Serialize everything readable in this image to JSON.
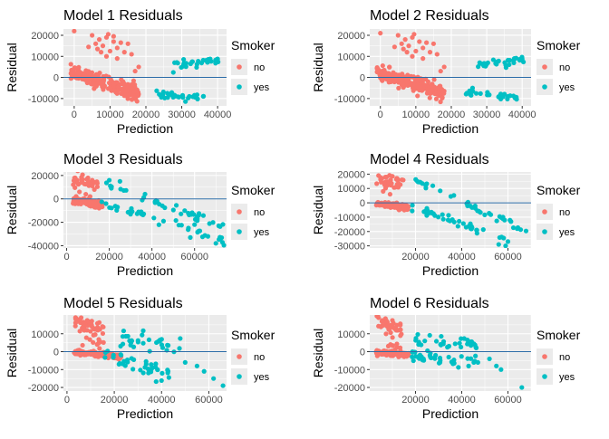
{
  "colors": {
    "no": "#F8766D",
    "yes": "#00BFC4",
    "panel": "#EBEBEB",
    "grid": "#FFFFFF",
    "hline": "#2C6CA8"
  },
  "legend": {
    "title": "Smoker",
    "items": [
      "no",
      "yes"
    ]
  },
  "chart_data": [
    {
      "type": "scatter",
      "title": "Model 1 Residuals",
      "xlabel": "Prediction",
      "ylabel": "Residual",
      "xlim": [
        -3000,
        42500
      ],
      "ylim": [
        -13500,
        23000
      ],
      "xticks": [
        0,
        10000,
        20000,
        30000,
        40000
      ],
      "xticklabels": [
        "0",
        "10000",
        "20000",
        "30000",
        "40000"
      ],
      "yticks": [
        -10000,
        0,
        10000,
        20000
      ],
      "yticklabels": [
        "-10000",
        "0",
        "10000",
        "20000"
      ],
      "hline": 0,
      "series": [
        {
          "name": "no",
          "clusters": [
            {
              "x0": -1000,
              "x1": 18000,
              "yc0": 2500,
              "yc1": -7500,
              "ys": 1800,
              "n": 220
            }
          ],
          "points": [
            [
              0,
              22000
            ],
            [
              5000,
              20000
            ],
            [
              7000,
              18000
            ],
            [
              9000,
              19000
            ],
            [
              11000,
              17000
            ],
            [
              13000,
              16500
            ],
            [
              6000,
              16000
            ],
            [
              8000,
              15000
            ],
            [
              12000,
              14000
            ],
            [
              14000,
              12000
            ],
            [
              10000,
              12500
            ],
            [
              9500,
              20500
            ],
            [
              15000,
              16000
            ],
            [
              7500,
              12000
            ],
            [
              16000,
              11000
            ],
            [
              4000,
              14500
            ],
            [
              6500,
              13500
            ],
            [
              18000,
              5000
            ],
            [
              17000,
              3000
            ],
            [
              12000,
              9000
            ],
            [
              9000,
              10000
            ],
            [
              11000,
              19500
            ]
          ]
        },
        {
          "name": "yes",
          "clusters": [
            {
              "x0": 27500,
              "x1": 41000,
              "yc0": 5500,
              "yc1": 8500,
              "ys": 900,
              "n": 28
            },
            {
              "x0": 23000,
              "x1": 38500,
              "yc0": -8500,
              "yc1": -10200,
              "ys": 800,
              "n": 28
            }
          ],
          "points": [
            [
              28000,
              7000
            ],
            [
              33000,
              7500
            ],
            [
              36000,
              8200
            ],
            [
              40000,
              8800
            ],
            [
              26000,
              -7500
            ],
            [
              36000,
              -9000
            ]
          ]
        }
      ]
    },
    {
      "type": "scatter",
      "title": "Model 2 Residuals",
      "xlabel": "Prediction",
      "ylabel": "Residual",
      "xlim": [
        -3000,
        42500
      ],
      "ylim": [
        -13500,
        23000
      ],
      "xticks": [
        0,
        10000,
        20000,
        30000,
        40000
      ],
      "xticklabels": [
        "0",
        "10000",
        "20000",
        "30000",
        "40000"
      ],
      "yticks": [
        -10000,
        0,
        10000,
        20000
      ],
      "yticklabels": [
        "-10000",
        "0",
        "10000",
        "20000"
      ],
      "hline": 0,
      "series": [
        {
          "name": "no",
          "clusters": [
            {
              "x0": -1000,
              "x1": 18000,
              "yc0": 2500,
              "yc1": -7500,
              "ys": 1800,
              "n": 220
            }
          ],
          "points": [
            [
              0,
              21000
            ],
            [
              5000,
              20000
            ],
            [
              7000,
              18000
            ],
            [
              9000,
              19000
            ],
            [
              11000,
              17000
            ],
            [
              13000,
              16500
            ],
            [
              6000,
              16000
            ],
            [
              8000,
              15000
            ],
            [
              12000,
              14000
            ],
            [
              14000,
              12000
            ],
            [
              10000,
              12500
            ],
            [
              9500,
              20500
            ],
            [
              15000,
              16000
            ],
            [
              7500,
              12000
            ],
            [
              16000,
              11000
            ],
            [
              4000,
              14500
            ],
            [
              6500,
              13500
            ],
            [
              18000,
              5000
            ],
            [
              17000,
              3000
            ],
            [
              12000,
              9000
            ],
            [
              9000,
              10000
            ]
          ]
        },
        {
          "name": "yes",
          "clusters": [
            {
              "x0": 27500,
              "x1": 41000,
              "yc0": 5500,
              "yc1": 8500,
              "ys": 900,
              "n": 28
            },
            {
              "x0": 23500,
              "x1": 38500,
              "yc0": -7500,
              "yc1": -9500,
              "ys": 900,
              "n": 28
            }
          ],
          "points": [
            [
              28000,
              7000
            ],
            [
              33000,
              7500
            ],
            [
              36000,
              8200
            ],
            [
              40000,
              8800
            ],
            [
              26000,
              -5000
            ],
            [
              36000,
              -9000
            ]
          ]
        }
      ]
    },
    {
      "type": "scatter",
      "title": "Model 3 Residuals",
      "xlabel": "Prediction",
      "ylabel": "Residual",
      "xlim": [
        -1500,
        75000
      ],
      "ylim": [
        -42000,
        23000
      ],
      "xticks": [
        0,
        20000,
        40000,
        60000
      ],
      "xticklabels": [
        "0",
        "20000",
        "40000",
        "60000"
      ],
      "yticks": [
        -40000,
        -20000,
        0,
        20000
      ],
      "yticklabels": [
        "-40000",
        "-20000",
        "0",
        "20000"
      ],
      "hline": 0,
      "series": [
        {
          "name": "no",
          "clusters": [
            {
              "x0": 3000,
              "x1": 17000,
              "yc0": -1500,
              "yc1": -5000,
              "ys": 1300,
              "n": 150
            },
            {
              "x0": 3000,
              "x1": 15000,
              "yc0": 15000,
              "yc1": 12000,
              "ys": 3000,
              "n": 35
            }
          ],
          "points": [
            [
              4000,
              18000
            ],
            [
              7000,
              17500
            ],
            [
              10000,
              18000
            ],
            [
              12000,
              16000
            ],
            [
              6000,
              6000
            ],
            [
              9000,
              4000
            ],
            [
              13000,
              8000
            ],
            [
              11000,
              2000
            ]
          ]
        },
        {
          "name": "yes",
          "clusters": [
            {
              "x0": 16000,
              "x1": 74000,
              "yc0": 15000,
              "yc1": -24000,
              "ys": 1500,
              "n": 38
            },
            {
              "x0": 16000,
              "x1": 74000,
              "yc0": -3000,
              "yc1": -36000,
              "ys": 1800,
              "n": 40
            }
          ],
          "points": [
            [
              20000,
              16000
            ],
            [
              25000,
              15000
            ],
            [
              58000,
              -33000
            ],
            [
              70000,
              -38000
            ],
            [
              60000,
              -22000
            ]
          ]
        }
      ]
    },
    {
      "type": "scatter",
      "title": "Model 4 Residuals",
      "xlabel": "Prediction",
      "ylabel": "Residual",
      "xlim": [
        200,
        70000
      ],
      "ylim": [
        -31500,
        21500
      ],
      "xticks": [
        20000,
        40000,
        60000
      ],
      "xticklabels": [
        "20000",
        "40000",
        "60000"
      ],
      "yticks": [
        -30000,
        -20000,
        -10000,
        0,
        10000,
        20000
      ],
      "yticklabels": [
        "-30000",
        "-20000",
        "-10000",
        "0",
        "10000",
        "20000"
      ],
      "hline": 0,
      "series": [
        {
          "name": "no",
          "clusters": [
            {
              "x0": 3000,
              "x1": 17000,
              "yc0": -800,
              "yc1": -3000,
              "ys": 900,
              "n": 150
            },
            {
              "x0": 3000,
              "x1": 15000,
              "yc0": 16000,
              "yc1": 13000,
              "ys": 2500,
              "n": 35
            }
          ],
          "points": [
            [
              4000,
              19000
            ],
            [
              7000,
              18000
            ],
            [
              10000,
              18500
            ],
            [
              12000,
              17000
            ],
            [
              6000,
              8000
            ],
            [
              9000,
              6000
            ]
          ]
        },
        {
          "name": "yes",
          "clusters": [
            {
              "x0": 20000,
              "x1": 68000,
              "yc0": 15000,
              "yc1": -20000,
              "ys": 1500,
              "n": 38
            },
            {
              "x0": 17000,
              "x1": 62000,
              "yc0": -2000,
              "yc1": -28000,
              "ys": 1500,
              "n": 38
            }
          ],
          "points": [
            [
              56000,
              -29000
            ],
            [
              59000,
              -30000
            ],
            [
              60000,
              -27000
            ],
            [
              64000,
              -18000
            ]
          ]
        }
      ]
    },
    {
      "type": "scatter",
      "title": "Model 5 Residuals",
      "xlabel": "Prediction",
      "ylabel": "Residual",
      "xlim": [
        -1500,
        67500
      ],
      "ylim": [
        -22000,
        20500
      ],
      "xticks": [
        0,
        20000,
        40000,
        60000
      ],
      "xticklabels": [
        "0",
        "20000",
        "40000",
        "60000"
      ],
      "yticks": [
        -20000,
        -10000,
        0,
        10000
      ],
      "yticklabels": [
        "-20000",
        "-10000",
        "0",
        "10000"
      ],
      "hline": 0,
      "series": [
        {
          "name": "no",
          "clusters": [
            {
              "x0": 3000,
              "x1": 23000,
              "yc0": -300,
              "yc1": -2800,
              "ys": 700,
              "n": 150
            },
            {
              "x0": 3000,
              "x1": 16000,
              "yc0": 16500,
              "yc1": 11000,
              "ys": 2000,
              "n": 38
            },
            {
              "x0": 6000,
              "x1": 16000,
              "yc0": 5000,
              "yc1": 3000,
              "ys": 2500,
              "n": 10
            }
          ],
          "points": [
            [
              4000,
              18500
            ],
            [
              6000,
              19000
            ],
            [
              9000,
              17000
            ],
            [
              13000,
              12000
            ]
          ]
        },
        {
          "name": "yes",
          "clusters": [
            {
              "x0": 22000,
              "x1": 48000,
              "yc0": 9000,
              "yc1": 2000,
              "ys": 2500,
              "n": 32
            },
            {
              "x0": 16000,
              "x1": 44000,
              "yc0": -3000,
              "yc1": -13000,
              "ys": 2500,
              "n": 38
            }
          ],
          "points": [
            [
              55000,
              -8000
            ],
            [
              58000,
              -11000
            ],
            [
              62000,
              -15000
            ],
            [
              66000,
              -19000
            ],
            [
              50000,
              -6000
            ],
            [
              22000,
              -7000
            ]
          ]
        }
      ]
    },
    {
      "type": "scatter",
      "title": "Model 6 Residuals",
      "xlabel": "Prediction",
      "ylabel": "Residual",
      "xlim": [
        200,
        70000
      ],
      "ylim": [
        -22000,
        20500
      ],
      "xticks": [
        20000,
        40000,
        60000
      ],
      "xticklabels": [
        "20000",
        "40000",
        "60000"
      ],
      "yticks": [
        -20000,
        -10000,
        0,
        10000
      ],
      "yticklabels": [
        "-20000",
        "-10000",
        "0",
        "10000"
      ],
      "hline": 0,
      "series": [
        {
          "name": "no",
          "clusters": [
            {
              "x0": 3000,
              "x1": 17000,
              "yc0": -300,
              "yc1": -1800,
              "ys": 600,
              "n": 150
            },
            {
              "x0": 3000,
              "x1": 14000,
              "yc0": 17000,
              "yc1": 12000,
              "ys": 2000,
              "n": 35
            },
            {
              "x0": 5000,
              "x1": 14000,
              "yc0": 6000,
              "yc1": 3000,
              "ys": 2500,
              "n": 10
            }
          ],
          "points": [
            [
              4000,
              19000
            ],
            [
              7000,
              18500
            ],
            [
              10000,
              17500
            ]
          ]
        },
        {
          "name": "yes",
          "clusters": [
            {
              "x0": 20000,
              "x1": 48000,
              "yc0": 7000,
              "yc1": 2000,
              "ys": 2200,
              "n": 30
            },
            {
              "x0": 18000,
              "x1": 46000,
              "yc0": -2000,
              "yc1": -6000,
              "ys": 1800,
              "n": 40
            }
          ],
          "points": [
            [
              52000,
              -4000
            ],
            [
              55000,
              -8000
            ],
            [
              57000,
              -10000
            ],
            [
              66000,
              -20000
            ],
            [
              47000,
              -6000
            ]
          ]
        }
      ]
    }
  ]
}
